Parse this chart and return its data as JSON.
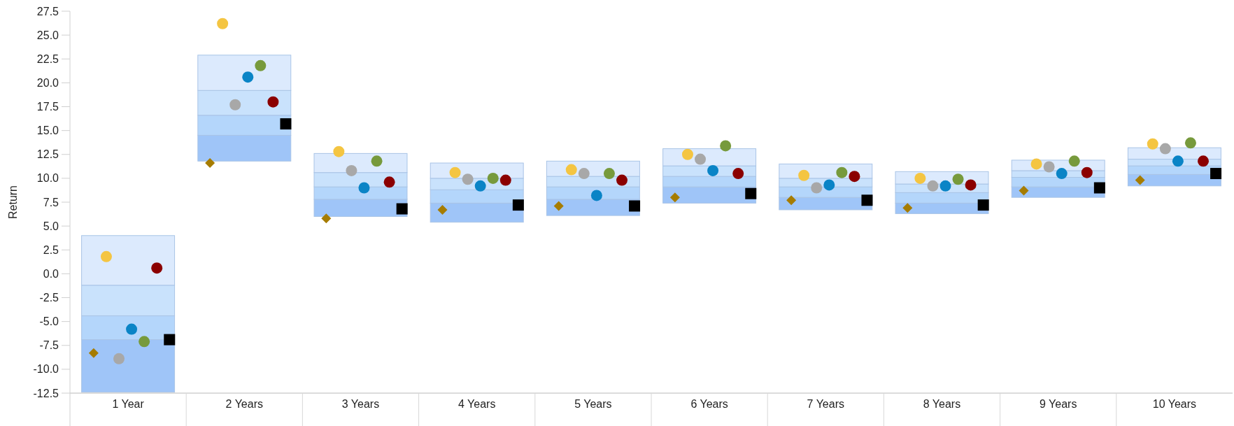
{
  "chart_data": {
    "type": "bar",
    "ylabel": "Return",
    "categories": [
      "1 Year",
      "2 Years",
      "3 Years",
      "4 Years",
      "5 Years",
      "6 Years",
      "7 Years",
      "8 Years",
      "9 Years",
      "10 Years"
    ],
    "series": [
      {
        "type": "bar",
        "color": "#9fc5f8",
        "base": [
          -12.4,
          11.8,
          6.0,
          5.4,
          6.1,
          7.4,
          6.7,
          6.3,
          8.0,
          9.2
        ],
        "values": [
          5.5,
          2.7,
          1.8,
          2.0,
          1.7,
          1.7,
          1.3,
          1.1,
          1.1,
          1.2
        ]
      },
      {
        "type": "bar",
        "color": "#b4d6fb",
        "base": [
          -6.9,
          14.5,
          7.8,
          7.4,
          7.8,
          9.1,
          8.0,
          7.4,
          9.1,
          10.4
        ],
        "values": [
          2.5,
          2.1,
          1.3,
          1.4,
          1.3,
          1.1,
          1.1,
          1.1,
          1.0,
          0.9
        ]
      },
      {
        "type": "bar",
        "color": "#c9e2fc",
        "base": [
          -4.4,
          16.6,
          9.1,
          8.8,
          9.1,
          10.2,
          9.1,
          8.5,
          10.1,
          11.3
        ],
        "values": [
          3.2,
          2.6,
          1.5,
          1.2,
          1.1,
          1.1,
          0.9,
          0.9,
          0.7,
          0.7
        ]
      },
      {
        "type": "bar",
        "color": "#dceafd",
        "base": [
          -1.2,
          19.2,
          10.6,
          10.0,
          10.2,
          11.3,
          10.0,
          9.4,
          10.8,
          12.0
        ],
        "values": [
          5.2,
          3.7,
          2.0,
          1.6,
          1.6,
          1.8,
          1.5,
          1.3,
          1.1,
          1.2
        ]
      },
      {
        "type": "scatter",
        "marker": "diamond",
        "color": "#a67c00",
        "values": [
          -8.3,
          11.6,
          5.8,
          6.7,
          7.1,
          8.0,
          7.7,
          6.9,
          8.7,
          9.8
        ]
      },
      {
        "type": "scatter",
        "marker": "circle",
        "color": "#f4c542",
        "values": [
          1.8,
          26.2,
          12.8,
          10.6,
          10.9,
          12.5,
          10.3,
          10.0,
          11.5,
          13.6
        ]
      },
      {
        "type": "scatter",
        "marker": "circle",
        "color": "#a8a8a8",
        "values": [
          -8.9,
          17.7,
          10.8,
          9.9,
          10.5,
          12.0,
          9.0,
          9.2,
          11.2,
          13.1
        ]
      },
      {
        "type": "scatter",
        "marker": "circle",
        "color": "#0a84c6",
        "values": [
          -5.8,
          20.6,
          9.0,
          9.2,
          8.2,
          10.8,
          9.3,
          9.2,
          10.5,
          11.8
        ]
      },
      {
        "type": "scatter",
        "marker": "circle",
        "color": "#779a3c",
        "values": [
          -7.1,
          21.8,
          11.8,
          10.0,
          10.5,
          13.4,
          10.6,
          9.9,
          11.8,
          13.7
        ]
      },
      {
        "type": "scatter",
        "marker": "circle",
        "color": "#8b0000",
        "values": [
          0.6,
          18.0,
          9.6,
          9.8,
          9.8,
          10.5,
          10.2,
          9.3,
          10.6,
          11.8
        ]
      },
      {
        "type": "scatter",
        "marker": "square",
        "color": "#000000",
        "values": [
          -6.9,
          15.7,
          6.8,
          7.2,
          7.1,
          8.4,
          7.7,
          7.2,
          9.0,
          10.5
        ]
      }
    ],
    "ylim": [
      -12.5,
      27.5
    ],
    "yticks": [
      27.5,
      {
        "value": 25,
        "label": "25.0"
      },
      22.5,
      {
        "value": 20,
        "label": "20.0"
      },
      17.5,
      {
        "value": 15,
        "label": "15.0"
      },
      12.5,
      {
        "value": 10,
        "label": "10.0"
      },
      7.5,
      {
        "value": 5,
        "label": "5.0"
      },
      2.5,
      {
        "value": 0,
        "label": "0.0"
      },
      -2.5,
      {
        "value": -5,
        "label": "-5.0"
      },
      -7.5,
      {
        "value": -10,
        "label": "-10.0"
      },
      -12.5
    ]
  }
}
